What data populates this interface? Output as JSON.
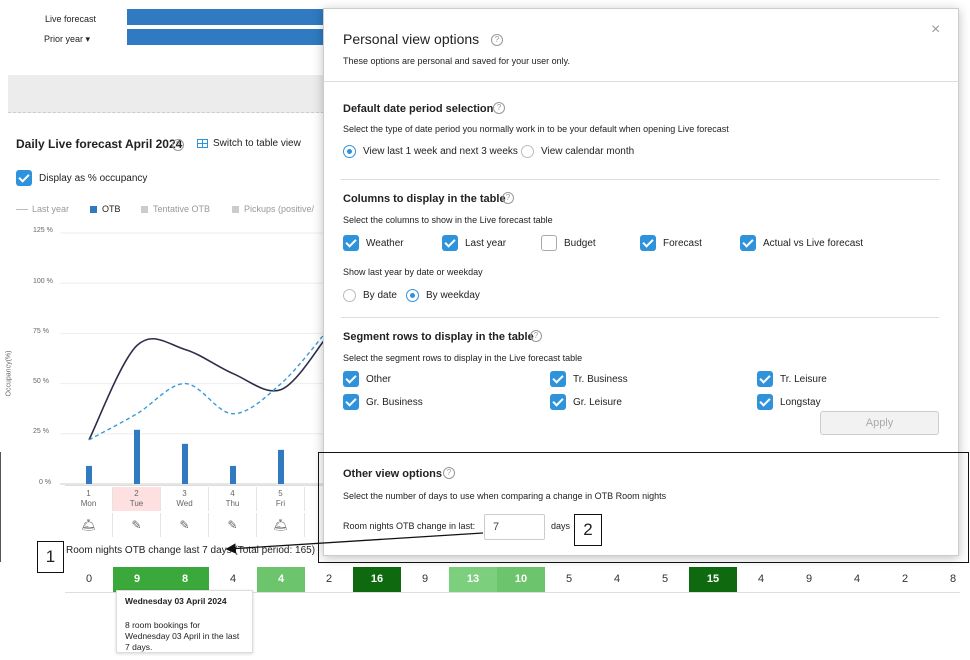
{
  "top": {
    "live_forecast": "Live forecast",
    "prior_year": "Prior year"
  },
  "chart": {
    "title": "Daily Live forecast April 2024",
    "switch_table": "Switch to table view",
    "display_pct": "Display as % occupancy",
    "legend": [
      "Last year",
      "OTB",
      "Tentative OTB",
      "Pickups (positive/"
    ],
    "ylabel": "Occupancy(%)",
    "y_ticks": [
      "125 %",
      "100 %",
      "75 %",
      "50 %",
      "25 %",
      "0 %"
    ],
    "days": [
      {
        "num": "1",
        "name": "Mon"
      },
      {
        "num": "2",
        "name": "Tue"
      },
      {
        "num": "3",
        "name": "Wed"
      },
      {
        "num": "4",
        "name": "Thu"
      },
      {
        "num": "5",
        "name": "Fri"
      }
    ]
  },
  "chart_data": {
    "type": "bar",
    "title": "Daily Live forecast April 2024",
    "ylabel": "Occupancy(%)",
    "ylim": [
      0,
      125
    ],
    "categories": [
      "1 Mon",
      "2 Tue",
      "3 Wed",
      "4 Thu",
      "5 Fri"
    ],
    "series": [
      {
        "name": "OTB",
        "values": [
          9,
          27,
          20,
          9,
          17
        ]
      },
      {
        "name": "Live forecast",
        "values": [
          22,
          69,
          67,
          55,
          47
        ]
      },
      {
        "name": "Last year",
        "values": [
          22,
          35,
          50,
          35,
          50
        ]
      }
    ]
  },
  "strip": {
    "label": "Room nights OTB change last 7 days (Total period: 165)",
    "values": [
      "0",
      "9",
      "8",
      "4",
      "4",
      "2",
      "16",
      "9",
      "13",
      "10",
      "5",
      "4",
      "5",
      "15",
      "4",
      "9",
      "4",
      "2",
      "8"
    ],
    "colors": [
      "#ffffff",
      "#3aa83a",
      "#3aa83a",
      "#ffffff",
      "#6cc46c",
      "#ffffff",
      "#0f6a0f",
      "#ffffff",
      "#7ccf7c",
      "#6cc46c",
      "#ffffff",
      "#ffffff",
      "#ffffff",
      "#0f6a0f",
      "#ffffff",
      "#ffffff",
      "#ffffff",
      "#ffffff",
      "#ffffff"
    ],
    "text_colors": [
      "#333",
      "#fff",
      "#fff",
      "#333",
      "#fff",
      "#333",
      "#fff",
      "#333",
      "#fff",
      "#fff",
      "#333",
      "#333",
      "#333",
      "#fff",
      "#333",
      "#333",
      "#333",
      "#333",
      "#333"
    ]
  },
  "tooltip": {
    "title": "Wednesday 03 April 2024",
    "body": "8 room bookings for Wednesday 03 April in the last 7 days."
  },
  "modal": {
    "title": "Personal view options",
    "subtitle": "These options are personal and saved for your user only.",
    "close": "×",
    "date_section": {
      "title": "Default date period selection",
      "desc": "Select the type of date period you normally work in to be your default when opening Live forecast",
      "opt1": "View last 1 week and next 3 weeks",
      "opt2": "View calendar month"
    },
    "columns_section": {
      "title": "Columns to display in the table",
      "desc": "Select the columns to show in the Live forecast table",
      "cols": [
        "Weather",
        "Last year",
        "Budget",
        "Forecast",
        "Actual vs Live forecast"
      ],
      "ly_label": "Show last year by date or weekday",
      "by_date": "By date",
      "by_weekday": "By weekday"
    },
    "segments_section": {
      "title": "Segment rows to display in the table",
      "desc": "Select the segment rows to display in the Live forecast table",
      "rows": [
        "Other",
        "Tr. Business",
        "Tr. Leisure",
        "Gr. Business",
        "Gr. Leisure",
        "Longstay"
      ]
    },
    "apply": "Apply",
    "other_section": {
      "title": "Other view options",
      "desc": "Select the number of days to use when comparing a change in OTB Room nights",
      "label": "Room nights OTB change in last:",
      "value": "7",
      "unit": "days"
    }
  },
  "callouts": {
    "one": "1",
    "two": "2"
  }
}
